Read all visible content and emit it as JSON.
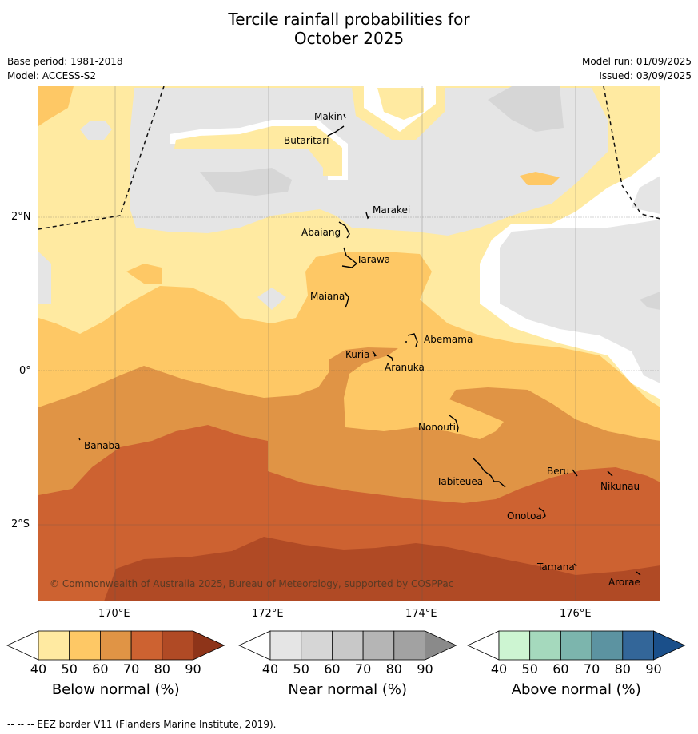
{
  "title_line1": "Tercile rainfall probabilities for",
  "title_line2": "October 2025",
  "meta": {
    "base_period": "Base period: 1981-2018",
    "model": "Model: ACCESS-S2",
    "model_run": "Model run: 01/09/2025",
    "issued": "Issued: 03/09/2025"
  },
  "axes": {
    "lon_labels": [
      "170°E",
      "172°E",
      "174°E",
      "176°E"
    ],
    "lat_labels": [
      "2°N",
      "0°",
      "2°S"
    ]
  },
  "islands": [
    {
      "name": "Makin"
    },
    {
      "name": "Butaritari"
    },
    {
      "name": "Marakei"
    },
    {
      "name": "Abaiang"
    },
    {
      "name": "Tarawa"
    },
    {
      "name": "Maiana"
    },
    {
      "name": "Abemama"
    },
    {
      "name": "Kuria"
    },
    {
      "name": "Aranuka"
    },
    {
      "name": "Banaba"
    },
    {
      "name": "Nonouti"
    },
    {
      "name": "Tabiteuea"
    },
    {
      "name": "Beru"
    },
    {
      "name": "Nikunau"
    },
    {
      "name": "Onotoa"
    },
    {
      "name": "Tamana"
    },
    {
      "name": "Arorae"
    }
  ],
  "copyright": "© Commonwealth of Australia 2025, Bureau of Meteorology, supported by COSPPac",
  "colorbars": [
    {
      "label": "Below normal (%)",
      "ticks": [
        "40",
        "50",
        "60",
        "70",
        "80",
        "90"
      ],
      "colors": [
        "#ffeaa1",
        "#fec865",
        "#e09445",
        "#cd6231",
        "#b04a25",
        "#8e3419"
      ]
    },
    {
      "label": "Near normal (%)",
      "ticks": [
        "40",
        "50",
        "60",
        "70",
        "80",
        "90"
      ],
      "colors": [
        "#e5e5e5",
        "#d6d6d6",
        "#c8c8c8",
        "#b5b5b5",
        "#a2a2a2",
        "#8a8a8a"
      ]
    },
    {
      "label": "Above normal (%)",
      "ticks": [
        "40",
        "50",
        "60",
        "70",
        "80",
        "90"
      ],
      "colors": [
        "#cdf5d2",
        "#a5d9bd",
        "#7cb5ad",
        "#5c93a1",
        "#336699",
        "#1a4f8a"
      ]
    }
  ],
  "footer": "--  --  -- EEZ border V11 (Flanders Marine Institute, 2019)."
}
